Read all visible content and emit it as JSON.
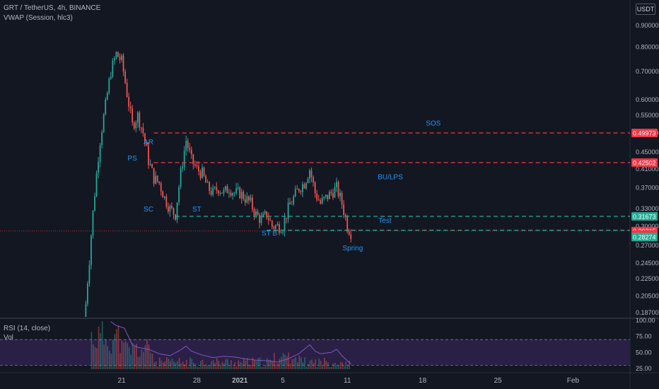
{
  "header": {
    "symbol": "GRT / TetherUS, 4h, BINANCE",
    "indicator": "VWAP (Session, hlc3)",
    "currency_button": "USDT"
  },
  "rsi_header": {
    "title": "RSI (14, close)",
    "vol": "Vol"
  },
  "colors": {
    "background": "#131722",
    "up": "#26a69a",
    "down": "#ef5350",
    "red_line": "#f23645",
    "green_line": "#22ab94",
    "annotation": "#2196f3",
    "rsi": "#7e57c2",
    "rsi_band": "#2a1f45"
  },
  "chart_data": [
    {
      "type": "candlestick",
      "title": "GRT / TetherUS, 4h, BINANCE",
      "y_scale": "log",
      "ylim": [
        0.18,
        0.95
      ],
      "y_ticks": [
        "0.90000",
        "0.80000",
        "0.70000",
        "0.60000",
        "0.55000",
        "0.50000",
        "0.45000",
        "0.41000",
        "0.37000",
        "0.33000",
        "0.30000",
        "0.27000",
        "0.24500",
        "0.22500",
        "0.20500",
        "0.18700"
      ],
      "x_ticks": [
        "21",
        "28",
        "2021",
        "5",
        "11",
        "18",
        "25",
        "Feb"
      ],
      "x_ticks_bold": [
        "2021"
      ],
      "close_path": [
        {
          "t": "Dec 17 12:00",
          "c": 0.17
        },
        {
          "t": "Dec 18 00:00",
          "c": 0.25
        },
        {
          "t": "Dec 18 12:00",
          "c": 0.36
        },
        {
          "t": "Dec 19 00:00",
          "c": 0.48
        },
        {
          "t": "Dec 19 12:00",
          "c": 0.58
        },
        {
          "t": "Dec 20 00:00",
          "c": 0.7
        },
        {
          "t": "Dec 20 12:00",
          "c": 0.77
        },
        {
          "t": "Dec 21 00:00",
          "c": 0.74
        },
        {
          "t": "Dec 21 12:00",
          "c": 0.62
        },
        {
          "t": "Dec 22 00:00",
          "c": 0.52
        },
        {
          "t": "Dec 22 12:00",
          "c": 0.55
        },
        {
          "t": "Dec 23 00:00",
          "c": 0.5
        },
        {
          "t": "Dec 23 12:00",
          "c": 0.43
        },
        {
          "t": "Dec 24 00:00",
          "c": 0.39
        },
        {
          "t": "Dec 24 12:00",
          "c": 0.38
        },
        {
          "t": "Dec 25 00:00",
          "c": 0.35
        },
        {
          "t": "Dec 25 12:00",
          "c": 0.33
        },
        {
          "t": "Dec 26 00:00",
          "c": 0.32
        },
        {
          "t": "Dec 26 12:00",
          "c": 0.4
        },
        {
          "t": "Dec 27 00:00",
          "c": 0.48
        },
        {
          "t": "Dec 27 12:00",
          "c": 0.43
        },
        {
          "t": "Dec 28 00:00",
          "c": 0.41
        },
        {
          "t": "Dec 28 12:00",
          "c": 0.4
        },
        {
          "t": "Dec 29 00:00",
          "c": 0.37
        },
        {
          "t": "Dec 29 12:00",
          "c": 0.36
        },
        {
          "t": "Dec 30 00:00",
          "c": 0.37
        },
        {
          "t": "Dec 30 12:00",
          "c": 0.36
        },
        {
          "t": "Dec 31 00:00",
          "c": 0.37
        },
        {
          "t": "Dec 31 12:00",
          "c": 0.36
        },
        {
          "t": "Jan 1 00:00",
          "c": 0.36
        },
        {
          "t": "Jan 1 12:00",
          "c": 0.35
        },
        {
          "t": "Jan 2 00:00",
          "c": 0.34
        },
        {
          "t": "Jan 2 12:00",
          "c": 0.32
        },
        {
          "t": "Jan 3 00:00",
          "c": 0.31
        },
        {
          "t": "Jan 3 12:00",
          "c": 0.32
        },
        {
          "t": "Jan 4 00:00",
          "c": 0.3
        },
        {
          "t": "Jan 4 12:00",
          "c": 0.3
        },
        {
          "t": "Jan 5 00:00",
          "c": 0.3
        },
        {
          "t": "Jan 5 12:00",
          "c": 0.33
        },
        {
          "t": "Jan 6 00:00",
          "c": 0.35
        },
        {
          "t": "Jan 6 12:00",
          "c": 0.37
        },
        {
          "t": "Jan 7 00:00",
          "c": 0.38
        },
        {
          "t": "Jan 7 12:00",
          "c": 0.41
        },
        {
          "t": "Jan 8 00:00",
          "c": 0.36
        },
        {
          "t": "Jan 8 12:00",
          "c": 0.34
        },
        {
          "t": "Jan 9 00:00",
          "c": 0.35
        },
        {
          "t": "Jan 9 12:00",
          "c": 0.36
        },
        {
          "t": "Jan 10 00:00",
          "c": 0.37
        },
        {
          "t": "Jan 10 12:00",
          "c": 0.34
        },
        {
          "t": "Jan 11 00:00",
          "c": 0.3
        },
        {
          "t": "Jan 11 08:00",
          "c": 0.29
        }
      ],
      "price_labels": [
        {
          "text": "0.49973",
          "value": 0.49973,
          "color": "#f23645"
        },
        {
          "text": "0.42502",
          "value": 0.42502,
          "color": "#f23645"
        },
        {
          "text": "0.31673",
          "value": 0.31673,
          "color": "#22ab94"
        },
        {
          "text": "0.29215",
          "value": 0.29215,
          "color": "#f23645"
        },
        {
          "text": "15:22",
          "value": 0.2865,
          "color": "#f23645"
        },
        {
          "text": "0.28274",
          "value": 0.28274,
          "color": "#22ab94"
        }
      ],
      "levels": [
        {
          "value": 0.49973,
          "from": "Dec 24 00:00",
          "color": "#f23645"
        },
        {
          "value": 0.42502,
          "from": "Dec 24 00:00",
          "color": "#f23645"
        },
        {
          "value": 0.31673,
          "from": "Dec 26 00:00",
          "color": "#22ab94"
        },
        {
          "value": 0.2935,
          "from": "Jan 3 12:00",
          "color": "#22ab94"
        }
      ],
      "current_price": 0.29215,
      "annotations": [
        {
          "text": "PS",
          "t": "Dec 22 00:00",
          "y": 0.43
        },
        {
          "text": "AR",
          "t": "Dec 23 12:00",
          "y": 0.47
        },
        {
          "text": "SC",
          "t": "Dec 23 12:00",
          "y": 0.325
        },
        {
          "text": "ST",
          "t": "Dec 28 00:00",
          "y": 0.325
        },
        {
          "text": "ST B",
          "t": "Jan 3 18:00",
          "y": 0.285
        },
        {
          "text": "SOS",
          "t": "Jan 19 00:00",
          "y": 0.52
        },
        {
          "text": "BU/LPS",
          "t": "Jan 15 00:00",
          "y": 0.388
        },
        {
          "text": "Test",
          "t": "Jan 14 12:00",
          "y": 0.306
        },
        {
          "text": "Spring",
          "t": "Jan 11 12:00",
          "y": 0.263
        }
      ]
    },
    {
      "type": "line",
      "title": "RSI (14, close)",
      "ylim": [
        20,
        100
      ],
      "y_ticks": [
        100.0,
        75.0,
        50.0,
        25.0
      ],
      "band": [
        30,
        70
      ],
      "series": [
        {
          "values": [
            {
              "t": "Dec 20 00:00",
              "v": 98
            },
            {
              "t": "Dec 20 12:00",
              "v": 92
            },
            {
              "t": "Dec 21 06:00",
              "v": 88
            },
            {
              "t": "Dec 22 00:00",
              "v": 62
            },
            {
              "t": "Dec 22 12:00",
              "v": 58
            },
            {
              "t": "Dec 23 12:00",
              "v": 55
            },
            {
              "t": "Dec 24 12:00",
              "v": 48
            },
            {
              "t": "Dec 25 12:00",
              "v": 45
            },
            {
              "t": "Dec 26 12:00",
              "v": 54
            },
            {
              "t": "Dec 27 00:00",
              "v": 60
            },
            {
              "t": "Dec 27 12:00",
              "v": 52
            },
            {
              "t": "Dec 28 12:00",
              "v": 46
            },
            {
              "t": "Dec 29 12:00",
              "v": 42
            },
            {
              "t": "Dec 30 12:00",
              "v": 44
            },
            {
              "t": "Dec 31 12:00",
              "v": 43
            },
            {
              "t": "Jan 1 12:00",
              "v": 40
            },
            {
              "t": "Jan 2 12:00",
              "v": 38
            },
            {
              "t": "Jan 3 12:00",
              "v": 37
            },
            {
              "t": "Jan 4 12:00",
              "v": 35
            },
            {
              "t": "Jan 5 12:00",
              "v": 40
            },
            {
              "t": "Jan 6 12:00",
              "v": 48
            },
            {
              "t": "Jan 7 12:00",
              "v": 62
            },
            {
              "t": "Jan 8 00:00",
              "v": 52
            },
            {
              "t": "Jan 8 12:00",
              "v": 48
            },
            {
              "t": "Jan 9 12:00",
              "v": 50
            },
            {
              "t": "Jan 10 00:00",
              "v": 55
            },
            {
              "t": "Jan 10 12:00",
              "v": 45
            },
            {
              "t": "Jan 11 08:00",
              "v": 32
            }
          ]
        }
      ]
    }
  ]
}
